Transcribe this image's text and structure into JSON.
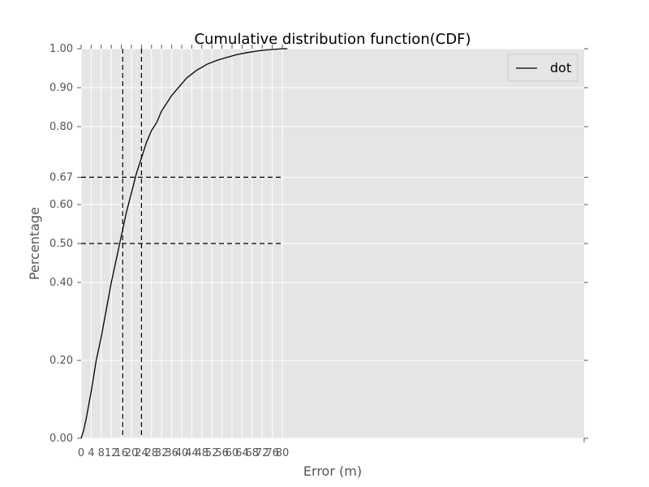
{
  "chart_data": {
    "type": "line",
    "title": "Cumulative distribution function(CDF)",
    "xlabel": "Error (m)",
    "ylabel": "Percentage",
    "xlim": [
      0,
      200
    ],
    "ylim": [
      0,
      1
    ],
    "grid": true,
    "background": "#e5e5e5",
    "legend": {
      "placement": "top-right"
    },
    "x_ticks": [
      0,
      4,
      8,
      12,
      16,
      20,
      24,
      28,
      32,
      36,
      40,
      44,
      48,
      52,
      56,
      60,
      64,
      68,
      72,
      76,
      80
    ],
    "x_tick_labels": [
      "0",
      "4",
      "8",
      "12",
      "16",
      "20",
      "24",
      "28",
      "32",
      "36",
      "40",
      "44",
      "48",
      "52",
      "56",
      "60",
      "64",
      "68",
      "72",
      "76",
      "80"
    ],
    "y_ticks": [
      0.0,
      0.2,
      0.4,
      0.5,
      0.6,
      0.67,
      0.8,
      0.9,
      1.0
    ],
    "y_tick_labels": [
      "0.00",
      "0.20",
      "0.40",
      "0.50",
      "0.60",
      "0.67",
      "0.80",
      "0.90",
      "1.00"
    ],
    "series": [
      {
        "name": "dot",
        "color": "#000000",
        "x": [
          0,
          1,
          2,
          4,
          6,
          8,
          10,
          12,
          14,
          16,
          18,
          20,
          22,
          24,
          26,
          28,
          30,
          32,
          34,
          36,
          38,
          40,
          42,
          44,
          46,
          48,
          50,
          54,
          58,
          62,
          66,
          70,
          74,
          78,
          80,
          82
        ],
        "y": [
          0.0,
          0.02,
          0.05,
          0.12,
          0.2,
          0.26,
          0.33,
          0.4,
          0.46,
          0.52,
          0.58,
          0.63,
          0.68,
          0.72,
          0.76,
          0.79,
          0.81,
          0.84,
          0.86,
          0.88,
          0.895,
          0.91,
          0.925,
          0.935,
          0.945,
          0.952,
          0.96,
          0.97,
          0.978,
          0.985,
          0.99,
          0.994,
          0.997,
          0.999,
          1.0,
          1.0
        ]
      }
    ],
    "reference_lines": [
      {
        "percentile": 0.5,
        "x": 16.5
      },
      {
        "percentile": 0.67,
        "x": 24.0
      }
    ],
    "reference_line_x_extent": 80
  }
}
